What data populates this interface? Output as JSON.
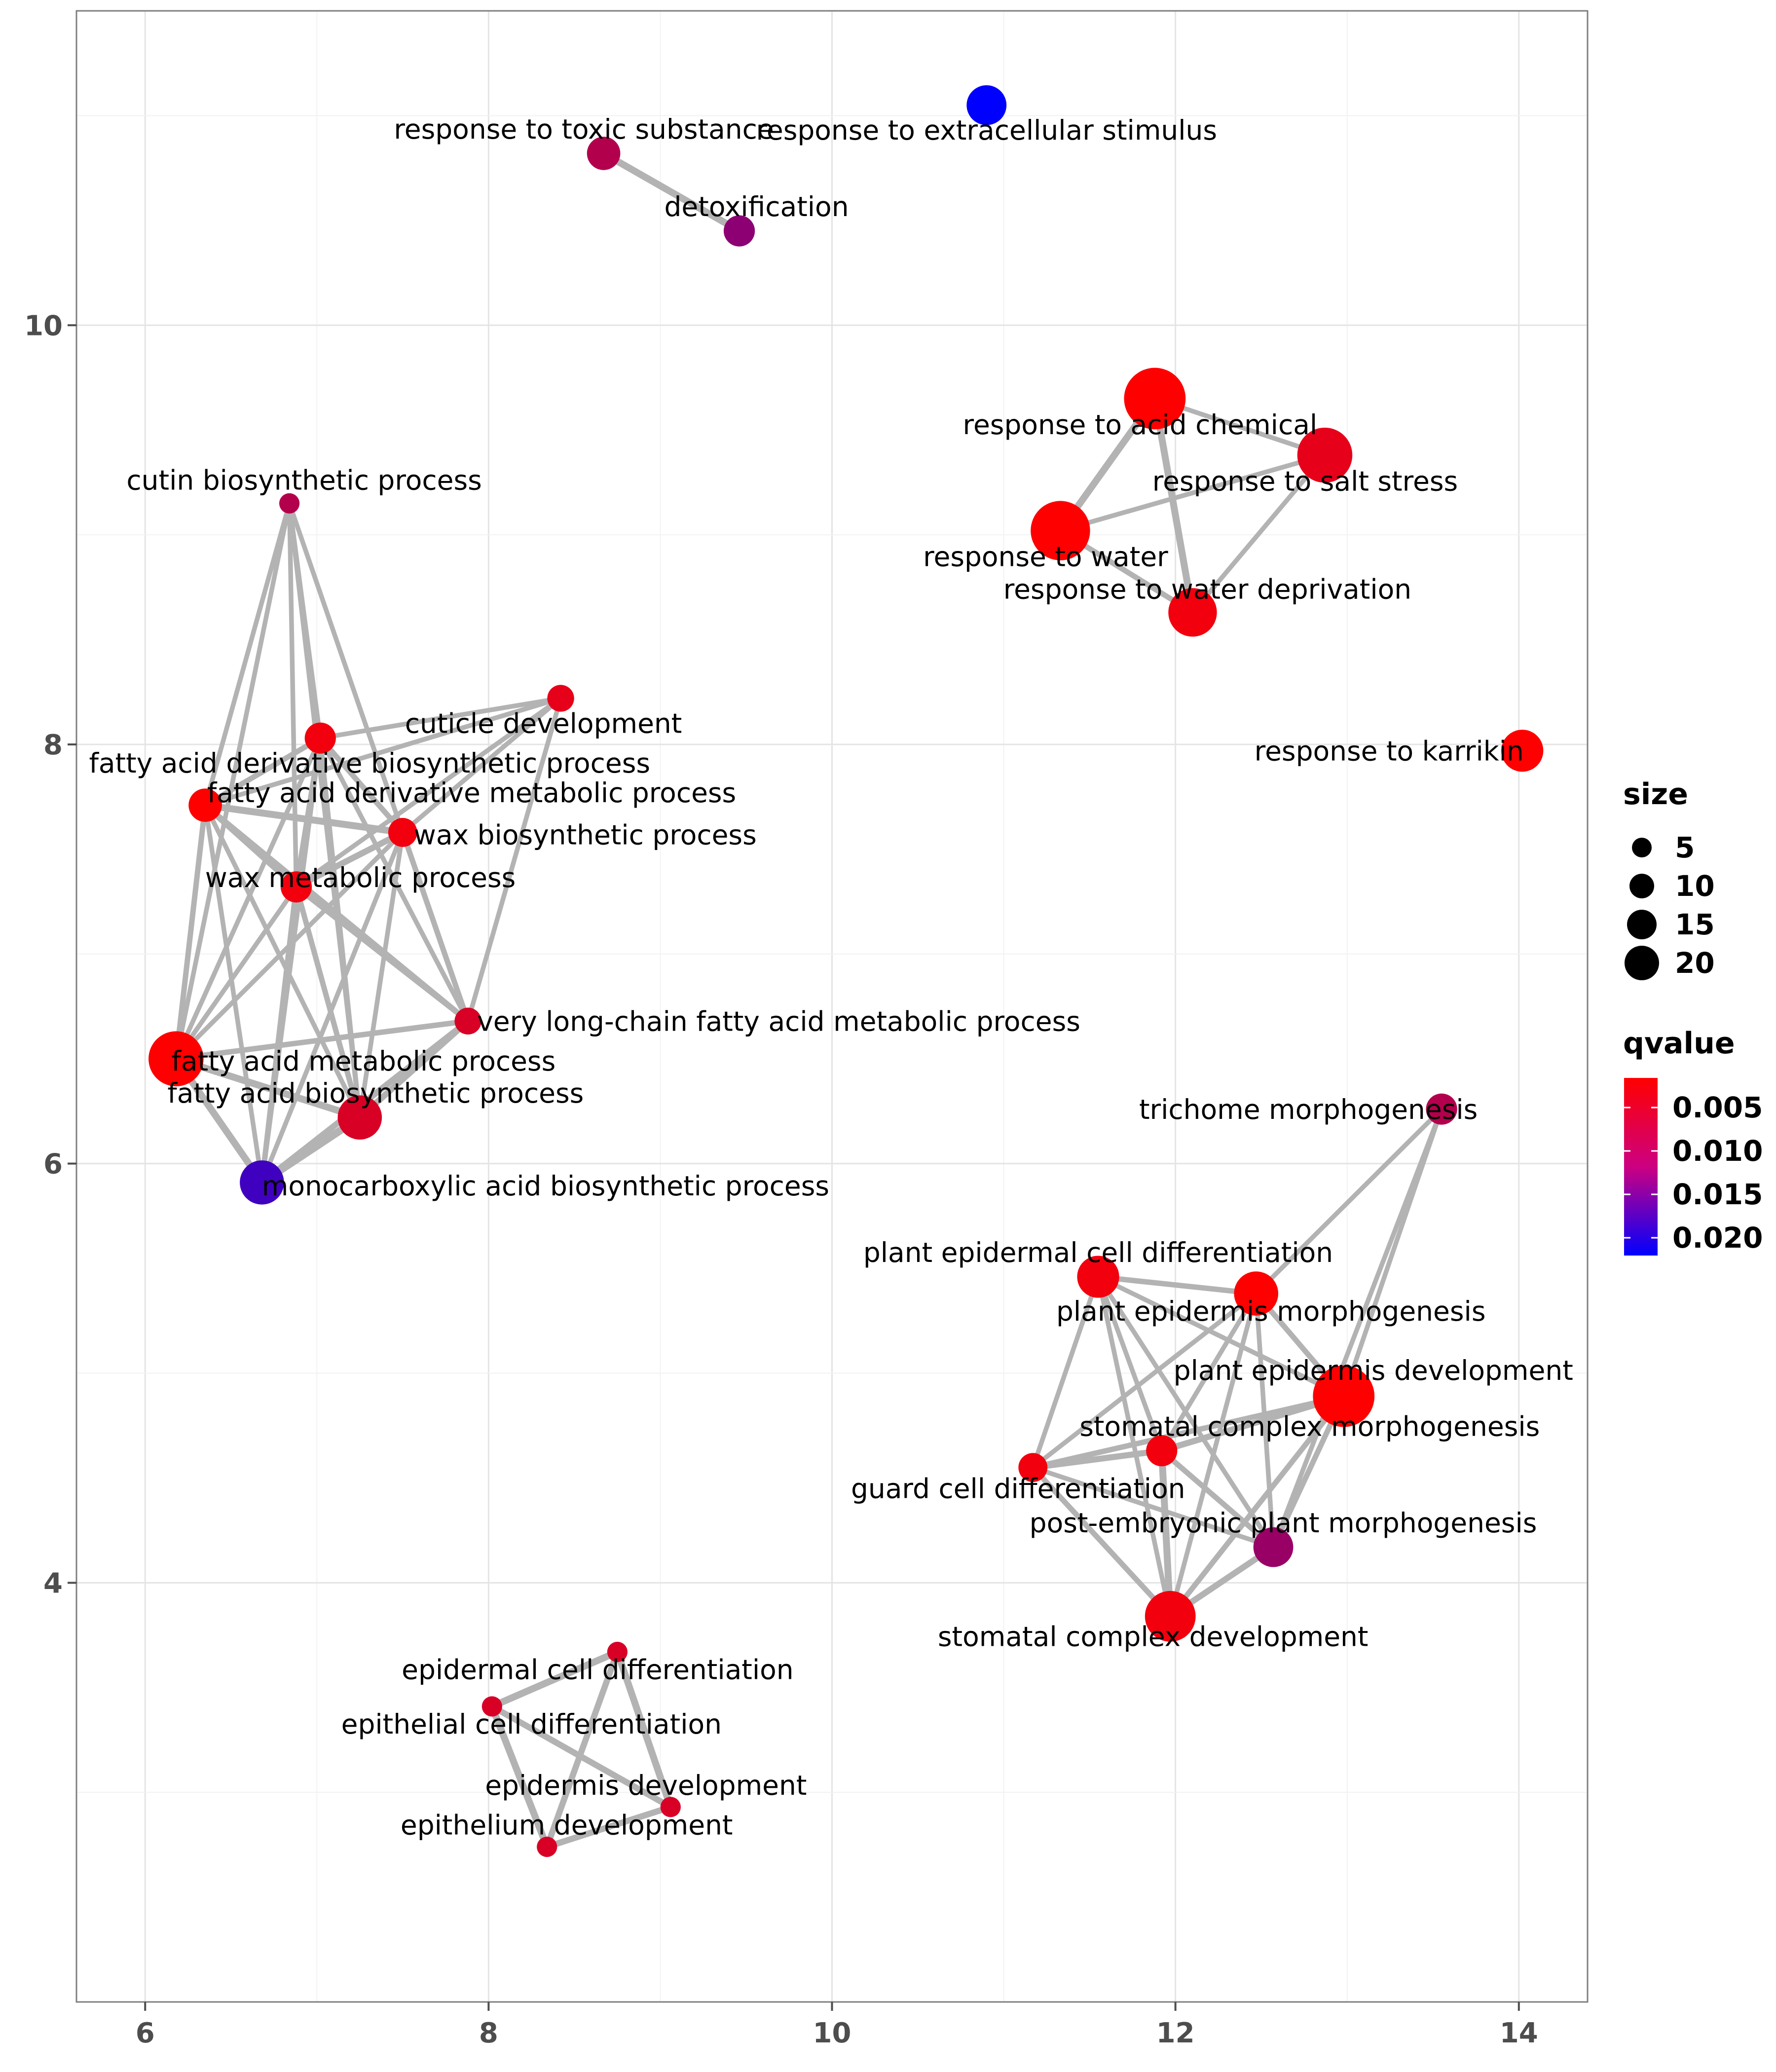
{
  "chart_data": {
    "type": "scatter",
    "subtype": "network",
    "title": "",
    "xlabel": "",
    "ylabel": "",
    "xlim": [
      5.6,
      14.4
    ],
    "ylim": [
      2.0,
      11.5
    ],
    "x_ticks": [
      6,
      8,
      10,
      12,
      14
    ],
    "y_ticks": [
      4,
      6,
      8,
      10
    ],
    "grid": true,
    "legend": {
      "placement": "right",
      "size": {
        "title": "size",
        "values": [
          5,
          10,
          15,
          20
        ]
      },
      "color": {
        "title": "qvalue",
        "labels": [
          "0.005",
          "0.010",
          "0.015",
          "0.020"
        ],
        "low_color": "#ff0000",
        "high_color": "#0000ff"
      }
    },
    "nodes": [
      {
        "id": "n1",
        "label": "response to extracellular stimulus",
        "x": 10.9,
        "y": 11.05,
        "size": 12,
        "qvalue": 0.021
      },
      {
        "id": "n2",
        "label": "response to toxic substance",
        "x": 8.67,
        "y": 10.82,
        "size": 9,
        "qvalue": 0.007
      },
      {
        "id": "n3",
        "label": "detoxification",
        "x": 9.46,
        "y": 10.45,
        "size": 8,
        "qvalue": 0.01
      },
      {
        "id": "n4",
        "label": "response to acid chemical",
        "x": 11.88,
        "y": 9.65,
        "size": 22,
        "qvalue": 0.001
      },
      {
        "id": "n5",
        "label": "response to salt stress",
        "x": 12.87,
        "y": 9.38,
        "size": 19,
        "qvalue": 0.003
      },
      {
        "id": "n6",
        "label": "response to water",
        "x": 11.33,
        "y": 9.02,
        "size": 21,
        "qvalue": 0.001
      },
      {
        "id": "n7",
        "label": "response to water deprivation",
        "x": 12.1,
        "y": 8.63,
        "size": 16,
        "qvalue": 0.002
      },
      {
        "id": "n8",
        "label": "cutin biosynthetic process",
        "x": 6.84,
        "y": 9.15,
        "size": 3,
        "qvalue": 0.007
      },
      {
        "id": "n9",
        "label": "cuticle development",
        "x": 8.42,
        "y": 8.22,
        "size": 6,
        "qvalue": 0.003
      },
      {
        "id": "n10",
        "label": "fatty acid derivative biosynthetic process",
        "x": 7.02,
        "y": 8.03,
        "size": 8,
        "qvalue": 0.002
      },
      {
        "id": "n11",
        "label": "fatty acid derivative metabolic process",
        "x": 6.35,
        "y": 7.71,
        "size": 9,
        "qvalue": 0.001
      },
      {
        "id": "n12",
        "label": "wax biosynthetic process",
        "x": 7.5,
        "y": 7.58,
        "size": 7,
        "qvalue": 0.002
      },
      {
        "id": "n13",
        "label": "wax metabolic process",
        "x": 6.88,
        "y": 7.32,
        "size": 8,
        "qvalue": 0.002
      },
      {
        "id": "n14",
        "label": "very long-chain fatty acid metabolic process",
        "x": 7.88,
        "y": 6.68,
        "size": 6,
        "qvalue": 0.004
      },
      {
        "id": "n15",
        "label": "fatty acid metabolic process",
        "x": 6.18,
        "y": 6.5,
        "size": 19,
        "qvalue": 0.001
      },
      {
        "id": "n16",
        "label": "fatty acid biosynthetic process",
        "x": 7.25,
        "y": 6.22,
        "size": 14,
        "qvalue": 0.004
      },
      {
        "id": "n17",
        "label": "monocarboxylic acid biosynthetic process",
        "x": 6.68,
        "y": 5.91,
        "size": 14,
        "qvalue": 0.016
      },
      {
        "id": "n18",
        "label": "response to karrikin",
        "x": 14.02,
        "y": 7.97,
        "size": 13,
        "qvalue": 0.001
      },
      {
        "id": "n19",
        "label": "trichome morphogenesis",
        "x": 13.55,
        "y": 6.26,
        "size": 8,
        "qvalue": 0.007
      },
      {
        "id": "n20",
        "label": "plant epidermal cell differentiation",
        "x": 11.55,
        "y": 5.46,
        "size": 13,
        "qvalue": 0.002
      },
      {
        "id": "n21",
        "label": "plant epidermis morphogenesis",
        "x": 12.47,
        "y": 5.38,
        "size": 14,
        "qvalue": 0.001
      },
      {
        "id": "n22",
        "label": "plant epidermis development",
        "x": 12.98,
        "y": 4.89,
        "size": 22,
        "qvalue": 0.001
      },
      {
        "id": "n23",
        "label": "stomatal complex morphogenesis",
        "x": 11.92,
        "y": 4.63,
        "size": 8,
        "qvalue": 0.002
      },
      {
        "id": "n24",
        "label": "guard cell differentiation",
        "x": 11.17,
        "y": 4.55,
        "size": 7,
        "qvalue": 0.002
      },
      {
        "id": "n25",
        "label": "post-embryonic plant morphogenesis",
        "x": 12.57,
        "y": 4.17,
        "size": 12,
        "qvalue": 0.009
      },
      {
        "id": "n26",
        "label": "stomatal complex development",
        "x": 11.97,
        "y": 3.84,
        "size": 17,
        "qvalue": 0.002
      },
      {
        "id": "n27",
        "label": "epidermal cell differentiation",
        "x": 8.75,
        "y": 3.67,
        "size": 3,
        "qvalue": 0.004
      },
      {
        "id": "n28",
        "label": "epithelial cell differentiation",
        "x": 8.02,
        "y": 3.41,
        "size": 3,
        "qvalue": 0.004
      },
      {
        "id": "n29",
        "label": "epidermis development",
        "x": 9.06,
        "y": 2.93,
        "size": 3,
        "qvalue": 0.004
      },
      {
        "id": "n30",
        "label": "epithelium development",
        "x": 8.34,
        "y": 2.74,
        "size": 3,
        "qvalue": 0.004
      }
    ],
    "edges": [
      {
        "source": "n2",
        "target": "n3",
        "weight": 3
      },
      {
        "source": "n4",
        "target": "n5",
        "weight": 1.5
      },
      {
        "source": "n4",
        "target": "n6",
        "weight": 3
      },
      {
        "source": "n4",
        "target": "n7",
        "weight": 3
      },
      {
        "source": "n6",
        "target": "n5",
        "weight": 1.5
      },
      {
        "source": "n6",
        "target": "n7",
        "weight": 2
      },
      {
        "source": "n5",
        "target": "n7",
        "weight": 1.5
      },
      {
        "source": "n8",
        "target": "n10",
        "weight": 1.5
      },
      {
        "source": "n8",
        "target": "n11",
        "weight": 1.5
      },
      {
        "source": "n8",
        "target": "n12",
        "weight": 1.5
      },
      {
        "source": "n8",
        "target": "n13",
        "weight": 1.5
      },
      {
        "source": "n8",
        "target": "n15",
        "weight": 1.5
      },
      {
        "source": "n8",
        "target": "n16",
        "weight": 1.5
      },
      {
        "source": "n9",
        "target": "n10",
        "weight": 1.5
      },
      {
        "source": "n9",
        "target": "n11",
        "weight": 1.5
      },
      {
        "source": "n9",
        "target": "n12",
        "weight": 1.5
      },
      {
        "source": "n9",
        "target": "n13",
        "weight": 1.5
      },
      {
        "source": "n9",
        "target": "n14",
        "weight": 1.5
      },
      {
        "source": "n10",
        "target": "n11",
        "weight": 2
      },
      {
        "source": "n10",
        "target": "n12",
        "weight": 2
      },
      {
        "source": "n10",
        "target": "n13",
        "weight": 2
      },
      {
        "source": "n10",
        "target": "n14",
        "weight": 1.5
      },
      {
        "source": "n10",
        "target": "n15",
        "weight": 1.5
      },
      {
        "source": "n10",
        "target": "n16",
        "weight": 1.5
      },
      {
        "source": "n10",
        "target": "n17",
        "weight": 1.5
      },
      {
        "source": "n11",
        "target": "n12",
        "weight": 3
      },
      {
        "source": "n11",
        "target": "n13",
        "weight": 2.5
      },
      {
        "source": "n11",
        "target": "n14",
        "weight": 2
      },
      {
        "source": "n11",
        "target": "n15",
        "weight": 2
      },
      {
        "source": "n11",
        "target": "n16",
        "weight": 1.5
      },
      {
        "source": "n11",
        "target": "n17",
        "weight": 1.5
      },
      {
        "source": "n12",
        "target": "n13",
        "weight": 2.5
      },
      {
        "source": "n12",
        "target": "n14",
        "weight": 2
      },
      {
        "source": "n12",
        "target": "n15",
        "weight": 1.5
      },
      {
        "source": "n12",
        "target": "n16",
        "weight": 1.5
      },
      {
        "source": "n12",
        "target": "n17",
        "weight": 1.5
      },
      {
        "source": "n13",
        "target": "n14",
        "weight": 2
      },
      {
        "source": "n13",
        "target": "n15",
        "weight": 1.5
      },
      {
        "source": "n13",
        "target": "n16",
        "weight": 2
      },
      {
        "source": "n13",
        "target": "n17",
        "weight": 2
      },
      {
        "source": "n14",
        "target": "n15",
        "weight": 2
      },
      {
        "source": "n14",
        "target": "n16",
        "weight": 2.5
      },
      {
        "source": "n14",
        "target": "n17",
        "weight": 2.5
      },
      {
        "source": "n15",
        "target": "n16",
        "weight": 3
      },
      {
        "source": "n15",
        "target": "n17",
        "weight": 3
      },
      {
        "source": "n16",
        "target": "n17",
        "weight": 3.5
      },
      {
        "source": "n19",
        "target": "n21",
        "weight": 1.5
      },
      {
        "source": "n19",
        "target": "n22",
        "weight": 1.5
      },
      {
        "source": "n19",
        "target": "n25",
        "weight": 1.5
      },
      {
        "source": "n20",
        "target": "n21",
        "weight": 2
      },
      {
        "source": "n20",
        "target": "n22",
        "weight": 1.5
      },
      {
        "source": "n20",
        "target": "n23",
        "weight": 1.5
      },
      {
        "source": "n20",
        "target": "n24",
        "weight": 1.5
      },
      {
        "source": "n20",
        "target": "n25",
        "weight": 1.5
      },
      {
        "source": "n20",
        "target": "n26",
        "weight": 1.5
      },
      {
        "source": "n21",
        "target": "n22",
        "weight": 2
      },
      {
        "source": "n21",
        "target": "n23",
        "weight": 1.5
      },
      {
        "source": "n21",
        "target": "n24",
        "weight": 1.5
      },
      {
        "source": "n21",
        "target": "n25",
        "weight": 1.5
      },
      {
        "source": "n21",
        "target": "n26",
        "weight": 1.5
      },
      {
        "source": "n22",
        "target": "n23",
        "weight": 2.5
      },
      {
        "source": "n22",
        "target": "n24",
        "weight": 2
      },
      {
        "source": "n22",
        "target": "n25",
        "weight": 2
      },
      {
        "source": "n22",
        "target": "n26",
        "weight": 2
      },
      {
        "source": "n23",
        "target": "n24",
        "weight": 2.5
      },
      {
        "source": "n23",
        "target": "n25",
        "weight": 2
      },
      {
        "source": "n23",
        "target": "n26",
        "weight": 3
      },
      {
        "source": "n24",
        "target": "n25",
        "weight": 1.5
      },
      {
        "source": "n24",
        "target": "n26",
        "weight": 2
      },
      {
        "source": "n25",
        "target": "n26",
        "weight": 2.5
      },
      {
        "source": "n27",
        "target": "n28",
        "weight": 3
      },
      {
        "source": "n27",
        "target": "n29",
        "weight": 3
      },
      {
        "source": "n27",
        "target": "n30",
        "weight": 2.5
      },
      {
        "source": "n28",
        "target": "n29",
        "weight": 2.5
      },
      {
        "source": "n28",
        "target": "n30",
        "weight": 3
      },
      {
        "source": "n29",
        "target": "n30",
        "weight": 2.5
      }
    ]
  }
}
